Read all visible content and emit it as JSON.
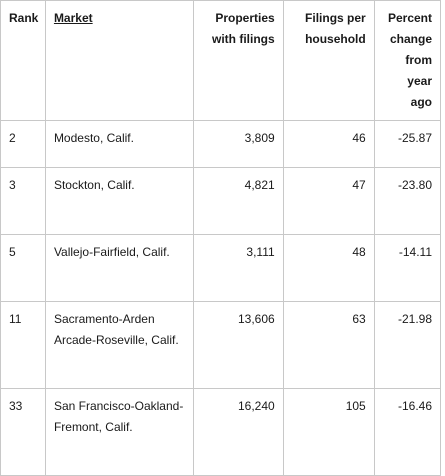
{
  "table": {
    "headers": {
      "rank": "Rank",
      "market": "Market",
      "properties": "Properties with filings",
      "filings_per_household": "Filings per household",
      "percent_change": "Percent change from year ago"
    },
    "rows": [
      {
        "rank": "2",
        "market": "Modesto, Calif.",
        "properties": "3,809",
        "filings_per_household": "46",
        "percent_change": "-25.87"
      },
      {
        "rank": "3",
        "market": "Stockton, Calif.",
        "properties": "4,821",
        "filings_per_household": "47",
        "percent_change": "-23.80"
      },
      {
        "rank": "5",
        "market": "Vallejo-Fairfield, Calif.",
        "properties": "3,111",
        "filings_per_household": "48",
        "percent_change": "-14.11"
      },
      {
        "rank": "11",
        "market": "Sacramento-Arden Arcade-Roseville, Calif.",
        "properties": "13,606",
        "filings_per_household": "63",
        "percent_change": "-21.98"
      },
      {
        "rank": "33",
        "market": "San Francisco-Oakland-Fremont, Calif.",
        "properties": "16,240",
        "filings_per_household": "105",
        "percent_change": "-16.46"
      }
    ]
  },
  "colors": {
    "border": "#c8c8c8",
    "text": "#1a1a1a",
    "background": "#ffffff"
  }
}
